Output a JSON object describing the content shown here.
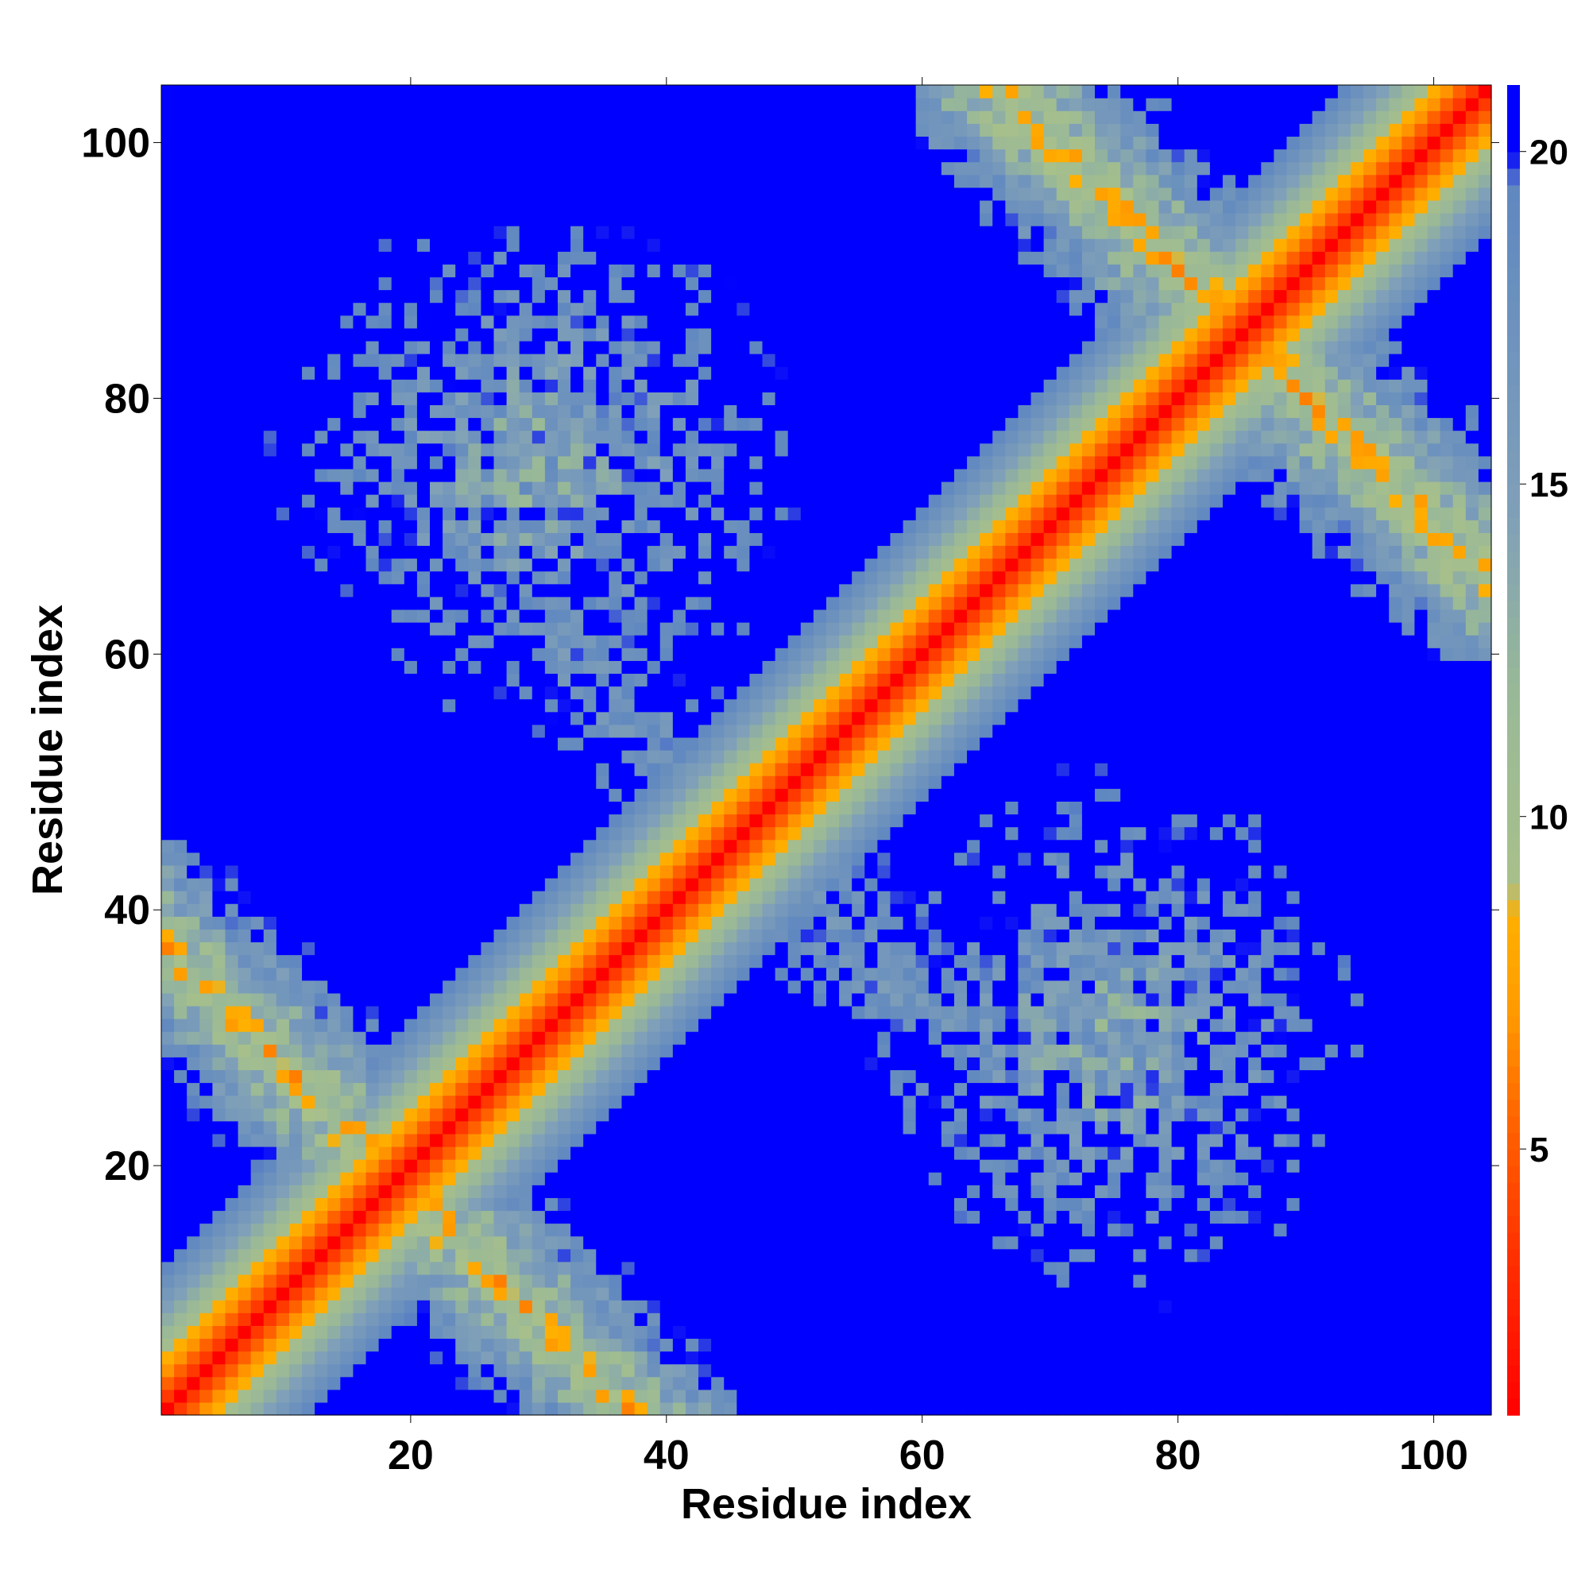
{
  "chart_data": {
    "type": "heatmap",
    "title": "",
    "xlabel": "Residue index",
    "ylabel": "Residue index",
    "n_residues": 104,
    "xlim": [
      1,
      104
    ],
    "ylim": [
      1,
      104
    ],
    "x_ticks": [
      20,
      40,
      60,
      80,
      100
    ],
    "y_ticks": [
      20,
      40,
      60,
      80,
      100
    ],
    "colorbar": {
      "ticks": [
        5,
        10,
        15,
        20
      ],
      "range": [
        1,
        21
      ],
      "stops": [
        {
          "value": 1,
          "color": "#ff0000"
        },
        {
          "value": 3.5,
          "color": "#ff3300"
        },
        {
          "value": 5.5,
          "color": "#ff6600"
        },
        {
          "value": 7,
          "color": "#ff9900"
        },
        {
          "value": 8.5,
          "color": "#ffb000"
        },
        {
          "value": 9,
          "color": "#a8c08a"
        },
        {
          "value": 12,
          "color": "#98b898"
        },
        {
          "value": 14.5,
          "color": "#80a0b8"
        },
        {
          "value": 19.5,
          "color": "#6088c0"
        },
        {
          "value": 20,
          "color": "#0000ff"
        },
        {
          "value": 21,
          "color": "#0000ff"
        }
      ]
    },
    "matrix_description": "Symmetric pairwise residue distance map (values shown by colour, clipped at 20). Diagonal band of near contacts; anti-diagonal contact region between residues ~1-40 and ~60-104.",
    "anti_diagonal_contacts": [
      {
        "i_range": [
          1,
          40
        ],
        "j_range": [
          15,
          45
        ],
        "min_value": 6
      },
      {
        "i_range": [
          62,
          104
        ],
        "j_range": [
          60,
          104
        ],
        "min_value": 6
      }
    ],
    "far_contact_regions": [
      {
        "i_center": 30,
        "j_center": 75,
        "radius": 22,
        "min_value": 12
      },
      {
        "i_center": 75,
        "j_center": 30,
        "radius": 22,
        "min_value": 12
      }
    ]
  }
}
